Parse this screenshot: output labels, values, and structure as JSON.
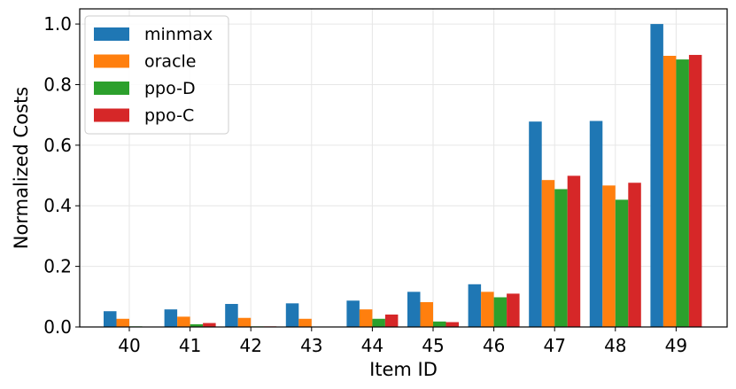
{
  "chart_data": {
    "type": "bar",
    "xlabel": "Item ID",
    "ylabel": "Normalized Costs",
    "categories": [
      "40",
      "41",
      "42",
      "43",
      "44",
      "45",
      "46",
      "47",
      "48",
      "49"
    ],
    "ylim": [
      0,
      1.05
    ],
    "yticks": [
      "0.0",
      "0.2",
      "0.4",
      "0.6",
      "0.8",
      "1.0"
    ],
    "grid": true,
    "legend_position": "top-left",
    "series": [
      {
        "name": "minmax",
        "color": "#1f77b4",
        "values": [
          0.052,
          0.058,
          0.076,
          0.078,
          0.087,
          0.116,
          0.141,
          0.678,
          0.68,
          1.0
        ]
      },
      {
        "name": "oracle",
        "color": "#ff7f0e",
        "values": [
          0.027,
          0.034,
          0.03,
          0.027,
          0.058,
          0.082,
          0.116,
          0.485,
          0.467,
          0.895
        ]
      },
      {
        "name": "ppo-D",
        "color": "#2ca02c",
        "values": [
          0.002,
          0.009,
          0.002,
          0.001,
          0.027,
          0.018,
          0.098,
          0.455,
          0.42,
          0.883
        ]
      },
      {
        "name": "ppo-C",
        "color": "#d62728",
        "values": [
          0.001,
          0.013,
          0.002,
          0.001,
          0.041,
          0.016,
          0.11,
          0.499,
          0.476,
          0.898
        ]
      }
    ]
  }
}
